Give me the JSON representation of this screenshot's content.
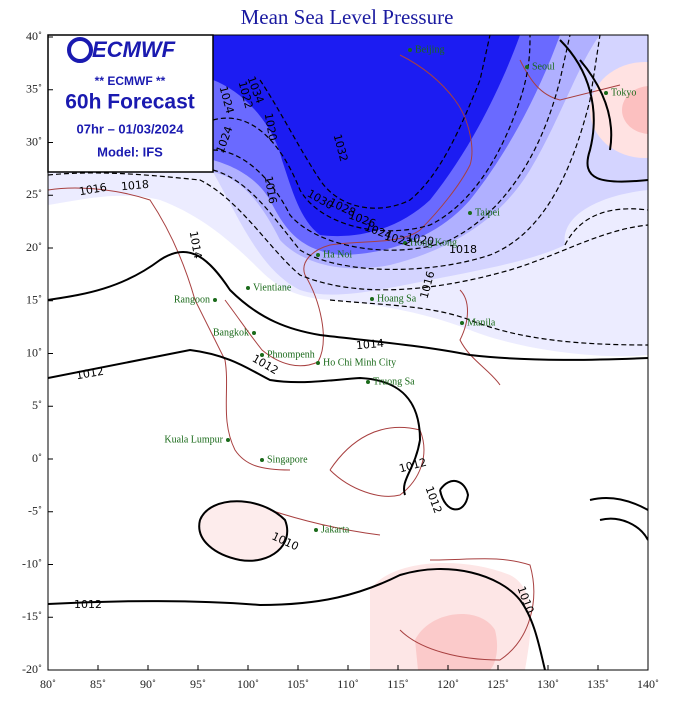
{
  "title": "Mean Sea Level Pressure",
  "logo": {
    "brand": "ECMWF",
    "subtitle": "** ECMWF **",
    "forecast": "60h Forecast",
    "time": "07hr – 01/03/2024",
    "model": "Model: IFS"
  },
  "lon_ticks": [
    "80˚",
    "85˚",
    "90˚",
    "95˚",
    "100˚",
    "105˚",
    "110˚",
    "115˚",
    "120˚",
    "125˚",
    "130˚",
    "135˚",
    "140˚"
  ],
  "lat_ticks": [
    "40˚",
    "35˚",
    "30˚",
    "25˚",
    "20˚",
    "15˚",
    "10˚",
    "5˚",
    "0˚",
    "-5˚",
    "-10˚",
    "-15˚",
    "-20˚"
  ],
  "cities": [
    "Beijing",
    "Seoul",
    "Tokyo",
    "Taipei",
    "Hong Kong",
    "Ha Noi",
    "Vientiane",
    "Rangoon",
    "Hoang Sa",
    "Manila",
    "Bangkok",
    "Phnompenh",
    "Ho Chi Minh City",
    "Truong Sa",
    "Kuala Lumpur",
    "Singapore",
    "Jakarta"
  ],
  "isobar_labels": [
    "1034",
    "1032",
    "1030",
    "1028",
    "1026",
    "1024",
    "1022",
    "1020",
    "1018",
    "1016",
    "1014",
    "1014",
    "1012",
    "1012",
    "1012",
    "1012",
    "1010",
    "1010",
    "1012",
    "1020",
    "1024",
    "1022",
    "1024",
    "1018",
    "1016",
    "1016"
  ]
}
